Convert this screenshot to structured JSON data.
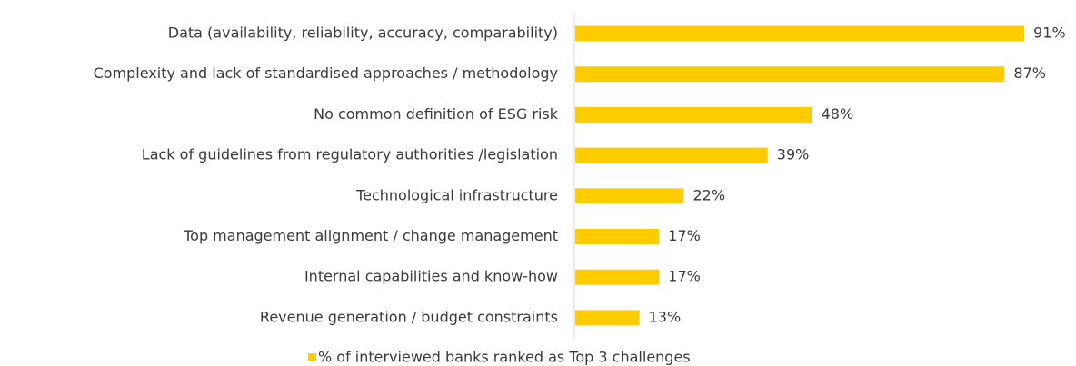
{
  "chart_data": {
    "type": "bar",
    "orientation": "horizontal",
    "categories": [
      "Data (availability, reliability, accuracy, comparability)",
      "Complexity and lack of standardised approaches / methodology",
      "No common definition of ESG risk",
      "Lack of guidelines from regulatory authorities /legislation",
      "Technological infrastructure",
      "Top management alignment / change management",
      "Internal capabilities and know-how",
      "Revenue generation / budget constraints"
    ],
    "series": [
      {
        "name": "% of interviewed banks ranked as Top 3 challenges",
        "color": "#ffcc00",
        "values": [
          91,
          87,
          48,
          39,
          22,
          17,
          17,
          13
        ],
        "value_labels": [
          "91%",
          "87%",
          "48%",
          "39%",
          "22%",
          "17%",
          "17%",
          "13%"
        ]
      }
    ],
    "legend": "bottom"
  }
}
